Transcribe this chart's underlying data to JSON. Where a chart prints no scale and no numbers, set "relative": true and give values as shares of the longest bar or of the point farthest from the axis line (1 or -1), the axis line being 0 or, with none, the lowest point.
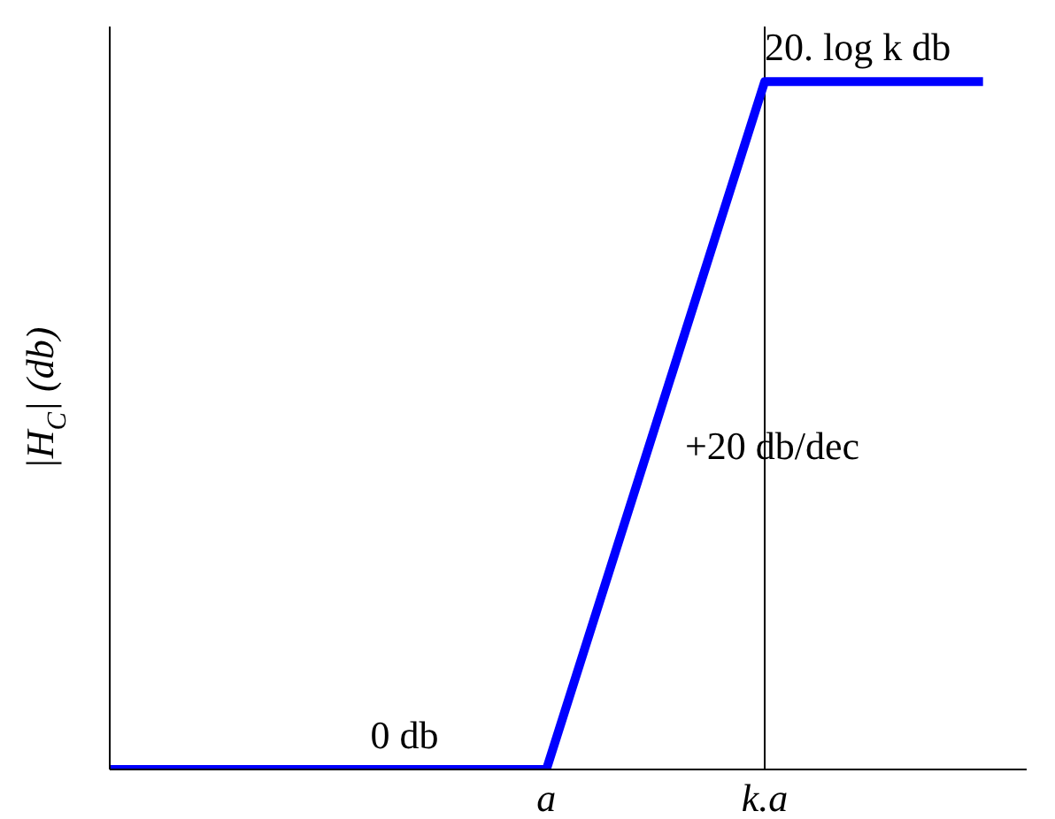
{
  "chart_data": {
    "type": "line",
    "relative": true,
    "ylabel": "|H$_{C}$| (db)",
    "categories": [
      null,
      null,
      "a",
      "k.a",
      null
    ],
    "series": [
      {
        "color": "#0000ff",
        "values": [
          0,
          0,
          0,
          1,
          1
        ]
      }
    ],
    "ref_lines": [
      {
        "axis": "x",
        "value": "k.a",
        "color": "#000000"
      }
    ],
    "annotations": [
      {
        "text": "0 db",
        "y": 0
      },
      {
        "text": "+20 db/dec",
        "x": "k.a",
        "y": 0.42
      },
      {
        "text": "20. log k db",
        "x": "k.a",
        "y": 1
      }
    ],
    "marker": "none"
  }
}
